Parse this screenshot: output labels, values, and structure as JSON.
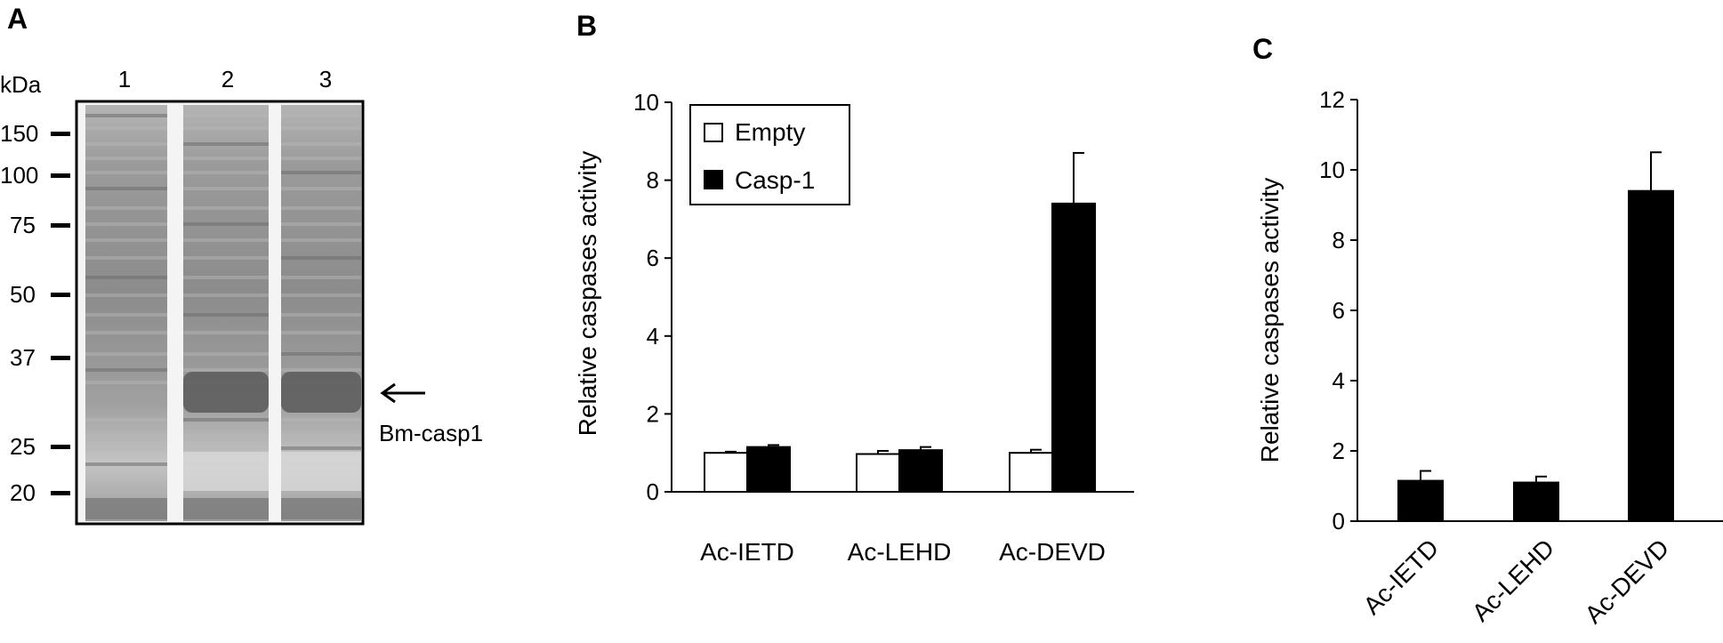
{
  "panels": {
    "A": {
      "label": "A",
      "unit": "kDa",
      "lanes": [
        "1",
        "2",
        "3"
      ],
      "markers": [
        "150",
        "100",
        "75",
        "50",
        "37",
        "25",
        "20"
      ],
      "annotation": "Bm-casp1"
    },
    "B": {
      "label": "B"
    },
    "C": {
      "label": "C"
    }
  },
  "colors": {
    "empty": "#ffffff",
    "casp1": "#000000",
    "axis": "#000000"
  },
  "chart_data": [
    {
      "panel": "B",
      "type": "bar",
      "categories": [
        "Ac-IETD",
        "Ac-LEHD",
        "Ac-DEVD"
      ],
      "ylabel": "Relative caspases activity",
      "ylim": [
        0,
        10
      ],
      "yticks": [
        "0",
        "2",
        "4",
        "6",
        "8",
        "10"
      ],
      "legend": "top-left",
      "series": [
        {
          "name": "Empty",
          "values": [
            1.0,
            0.97,
            1.0
          ],
          "errors": [
            0.03,
            0.08,
            0.08
          ]
        },
        {
          "name": "Casp-1",
          "values": [
            1.15,
            1.07,
            7.4
          ],
          "errors": [
            0.05,
            0.08,
            1.3
          ]
        }
      ]
    },
    {
      "panel": "C",
      "type": "bar",
      "categories": [
        "Ac-IETD",
        "Ac-LEHD",
        "Ac-DEVD"
      ],
      "ylabel": "Relative caspases activity",
      "ylim": [
        0,
        12
      ],
      "yticks": [
        "0",
        "2",
        "4",
        "6",
        "8",
        "10",
        "12"
      ],
      "series": [
        {
          "values": [
            1.15,
            1.1,
            9.4
          ],
          "errors": [
            0.28,
            0.17,
            1.1
          ]
        }
      ]
    }
  ]
}
